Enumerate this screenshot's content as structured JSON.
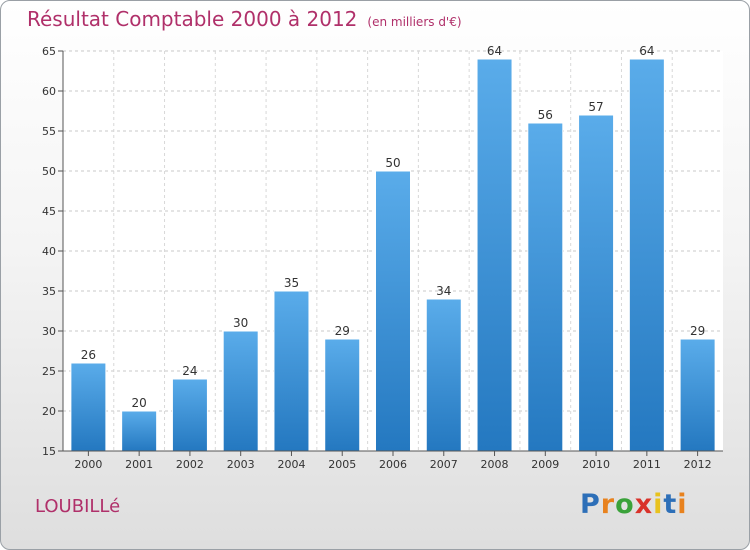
{
  "chart_data": {
    "type": "bar",
    "title": "Résultat Comptable 2000 à 2012",
    "subtitle": "(en milliers d'€)",
    "categories": [
      "2000",
      "2001",
      "2002",
      "2003",
      "2004",
      "2005",
      "2006",
      "2007",
      "2008",
      "2009",
      "2010",
      "2011",
      "2012"
    ],
    "values": [
      26,
      20,
      24,
      30,
      35,
      29,
      50,
      34,
      64,
      56,
      57,
      64,
      29
    ],
    "ylim": [
      15,
      65
    ],
    "yticks": [
      15,
      20,
      25,
      30,
      35,
      40,
      45,
      50,
      55,
      60,
      65
    ],
    "grid": true,
    "bar_color": "#3d8fd6",
    "data_labels": true
  },
  "location": "LOUBILLé",
  "logo": {
    "text": "Proxiti",
    "colors": [
      "#2d6fb8",
      "#e8821e",
      "#3aa23a",
      "#d9322a",
      "#e8c21e",
      "#2d6fb8",
      "#e8821e"
    ]
  }
}
